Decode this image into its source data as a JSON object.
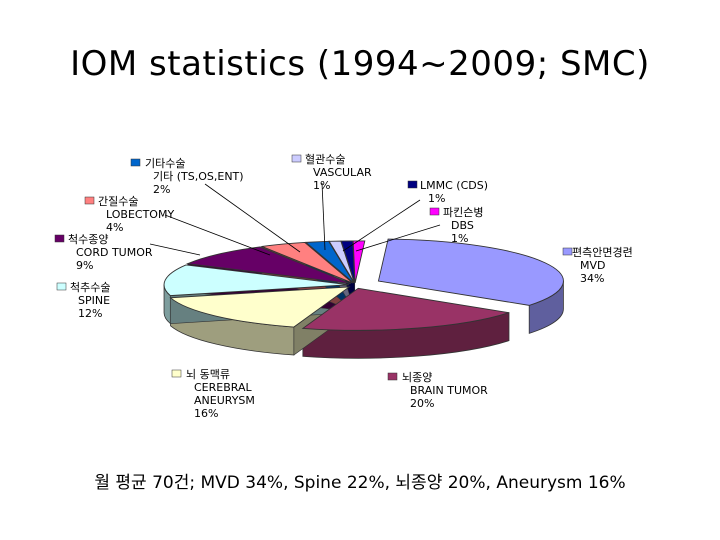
{
  "title": "IOM statistics (1994~2009; SMC)",
  "caption": "월 평균 70건; MVD 34%, Spine 22%, 뇌종양 20%, Aneurysm 16%",
  "chart_data": {
    "type": "pie",
    "style": "3d-exploded",
    "slices": [
      {
        "lines": [
          "편측안면경련",
          "MVD"
        ],
        "value": 34,
        "pct_label": "34%",
        "color": "#9999ff"
      },
      {
        "lines": [
          "뇌종양",
          "BRAIN TUMOR"
        ],
        "value": 20,
        "pct_label": "20%",
        "color": "#993366"
      },
      {
        "lines": [
          "뇌 동맥류",
          "CEREBRAL",
          "ANEURYSM"
        ],
        "value": 16,
        "pct_label": "16%",
        "color": "#ffffcc"
      },
      {
        "lines": [
          "척추수술",
          "SPINE"
        ],
        "value": 12,
        "pct_label": "12%",
        "color": "#ccffff"
      },
      {
        "lines": [
          "척수종양",
          "CORD TUMOR"
        ],
        "value": 9,
        "pct_label": "9%",
        "color": "#660066"
      },
      {
        "lines": [
          "간질수술",
          "LOBECTOMY"
        ],
        "value": 4,
        "pct_label": "4%",
        "color": "#ff8080"
      },
      {
        "lines": [
          "기타수술",
          "기타 (TS,OS,ENT)"
        ],
        "value": 2,
        "pct_label": "2%",
        "color": "#0066cc"
      },
      {
        "lines": [
          "혈관수술",
          "VASCULAR"
        ],
        "value": 1,
        "pct_label": "1%",
        "color": "#ccccff"
      },
      {
        "lines": [
          "LMMC (CDS)"
        ],
        "value": 1,
        "pct_label": "1%",
        "color": "#000080"
      },
      {
        "lines": [
          "파킨슨병",
          "DBS"
        ],
        "value": 1,
        "pct_label": "1%",
        "color": "#ff00ff"
      }
    ]
  }
}
